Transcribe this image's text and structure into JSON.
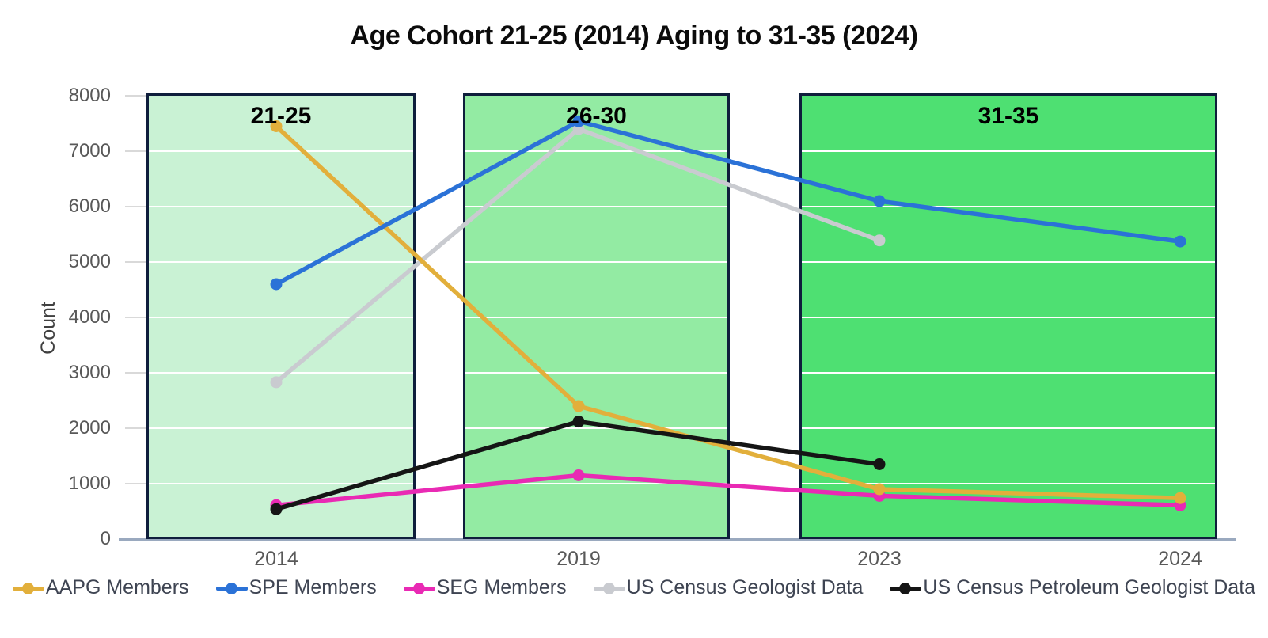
{
  "chart_data": {
    "type": "line",
    "title": "Age Cohort 21-25 (2014) Aging to 31-35 (2024)",
    "ylabel": "Count",
    "xlabel": "",
    "ylim": [
      0,
      8000
    ],
    "ytick_step": 1000,
    "ytick_labels": [
      "0",
      "1000",
      "2000",
      "3000",
      "4000",
      "5000",
      "6000",
      "7000",
      "8000"
    ],
    "categories": [
      "2014",
      "2019",
      "2023",
      "2024"
    ],
    "series": [
      {
        "name": "AAPG Members",
        "color": "#E2AF3B",
        "values": [
          7450,
          2400,
          900,
          740
        ]
      },
      {
        "name": "SPE Members",
        "color": "#2B72D7",
        "values": [
          4600,
          7540,
          6100,
          5370
        ]
      },
      {
        "name": "SEG Members",
        "color": "#E92AB4",
        "values": [
          610,
          1150,
          780,
          610
        ]
      },
      {
        "name": "US Census Geologist Data",
        "color": "#C9CBD0",
        "values": [
          2830,
          7400,
          5390,
          null
        ]
      },
      {
        "name": "US Census Petroleum Geologist Data",
        "color": "#151515",
        "values": [
          540,
          2120,
          1350,
          null
        ]
      }
    ],
    "bands": [
      {
        "label": "21-25",
        "fill": "#C9F2D4",
        "covers": [
          "2014"
        ]
      },
      {
        "label": "26-30",
        "fill": "#93EBA3",
        "covers": [
          "2019"
        ]
      },
      {
        "label": "31-35",
        "fill": "#4EE072",
        "covers": [
          "2023",
          "2024"
        ]
      }
    ],
    "band_border_color": "#0F1E3C",
    "gridline_color": "#FFFFFF",
    "axis_line_color": "#9AA9BF",
    "tick_label_color": "#595959",
    "legend_position": "bottom",
    "grid": true
  }
}
